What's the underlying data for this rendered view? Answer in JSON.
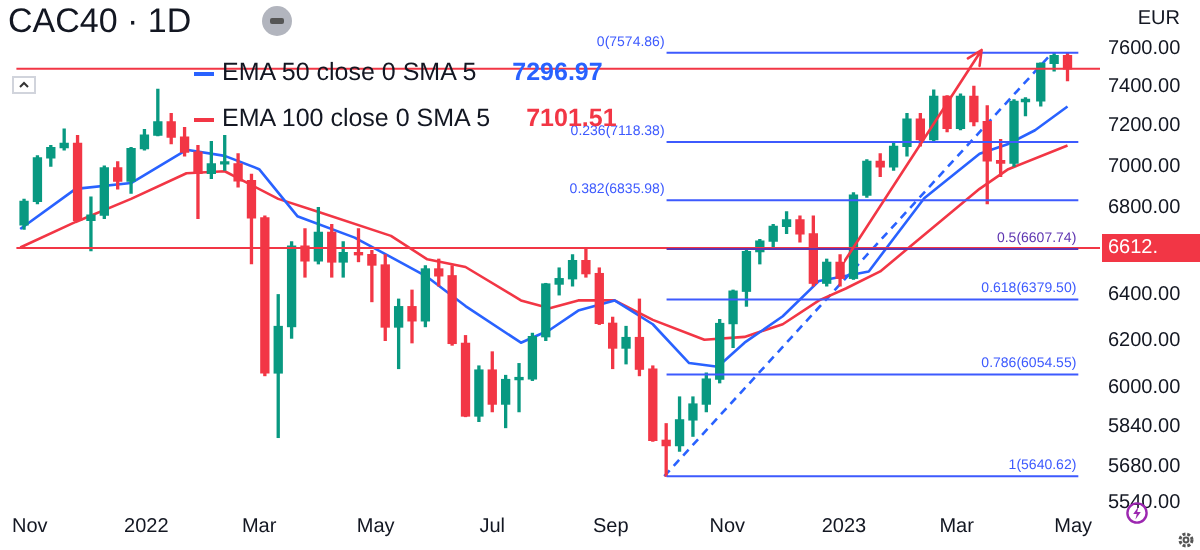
{
  "chart_data": {
    "type": "candlestick",
    "title": "CAC40 · 1D",
    "ylabel": "EUR",
    "log": "y",
    "grid": false,
    "legend": "top left",
    "xlim": [
      "2021-10-25",
      "2023-05-15"
    ],
    "xticks": [
      {
        "value": "2021-11-01",
        "label": "Nov"
      },
      {
        "value": "2022-01-01",
        "label": "2022"
      },
      {
        "value": "2022-03-01",
        "label": "Mar"
      },
      {
        "value": "2022-05-01",
        "label": "May"
      },
      {
        "value": "2022-07-01",
        "label": "Jul"
      },
      {
        "value": "2022-09-01",
        "label": "Sep"
      },
      {
        "value": "2022-11-01",
        "label": "Nov"
      },
      {
        "value": "2023-01-01",
        "label": "2023"
      },
      {
        "value": "2023-03-01",
        "label": "Mar"
      },
      {
        "value": "2023-05-01",
        "label": "May"
      }
    ],
    "ylim": [
      5540,
      7600
    ],
    "annotations": [
      "7296.97",
      "7101.51"
    ],
    "yticks": [
      {
        "value": 7600,
        "label": "7600.00"
      },
      {
        "value": 7400,
        "label": "7400.00"
      },
      {
        "value": 7200,
        "label": "7200.00"
      },
      {
        "value": 7000,
        "label": "7000.00"
      },
      {
        "value": 6800,
        "label": "6800.00"
      },
      {
        "value": 6400,
        "label": "6400.00"
      },
      {
        "value": 6200,
        "label": "6200.00"
      },
      {
        "value": 6000,
        "label": "6000.00"
      },
      {
        "value": 5840,
        "label": "5840.00"
      },
      {
        "value": 5680,
        "label": "5680.00"
      },
      {
        "value": 5540,
        "label": "5540.00"
      }
    ],
    "x": [
      "2021-10-29",
      "2021-11-05",
      "2021-11-12",
      "2021-11-19",
      "2021-11-26",
      "2021-12-03",
      "2021-12-10",
      "2021-12-17",
      "2021-12-24",
      "2021-12-31",
      "2022-01-07",
      "2022-01-14",
      "2022-01-21",
      "2022-01-28",
      "2022-02-04",
      "2022-02-11",
      "2022-02-18",
      "2022-02-25",
      "2022-03-04",
      "2022-03-11",
      "2022-03-18",
      "2022-03-25",
      "2022-04-01",
      "2022-04-08",
      "2022-04-14",
      "2022-04-22",
      "2022-04-29",
      "2022-05-06",
      "2022-05-13",
      "2022-05-20",
      "2022-05-27",
      "2022-06-03",
      "2022-06-10",
      "2022-06-17",
      "2022-06-24",
      "2022-07-01",
      "2022-07-08",
      "2022-07-15",
      "2022-07-22",
      "2022-07-29",
      "2022-08-05",
      "2022-08-12",
      "2022-08-19",
      "2022-08-26",
      "2022-09-02",
      "2022-09-09",
      "2022-09-16",
      "2022-09-23",
      "2022-09-30",
      "2022-10-07",
      "2022-10-14",
      "2022-10-21",
      "2022-10-28",
      "2022-11-04",
      "2022-11-11",
      "2022-11-18",
      "2022-11-25",
      "2022-12-02",
      "2022-12-09",
      "2022-12-16",
      "2022-12-23",
      "2022-12-30",
      "2023-01-06",
      "2023-01-13",
      "2023-01-20",
      "2023-01-27",
      "2023-02-03",
      "2023-02-10",
      "2023-02-17",
      "2023-02-24",
      "2023-03-03",
      "2023-03-10",
      "2023-03-17",
      "2023-03-24",
      "2023-03-31",
      "2023-04-06",
      "2023-04-14",
      "2023-04-21",
      "2023-04-28"
    ],
    "ohlc": [
      [
        6720,
        6840,
        6700,
        6830
      ],
      [
        6830,
        7050,
        6820,
        7040
      ],
      [
        7040,
        7100,
        7000,
        7091
      ],
      [
        7091,
        7183,
        7080,
        7112
      ],
      [
        7112,
        7150,
        6740,
        6740
      ],
      [
        6740,
        6850,
        6600,
        6765
      ],
      [
        6765,
        7000,
        6750,
        6991
      ],
      [
        6991,
        7020,
        6890,
        6927
      ],
      [
        6927,
        7090,
        6870,
        7086
      ],
      [
        7086,
        7180,
        7080,
        7153
      ],
      [
        7153,
        7384,
        7150,
        7219
      ],
      [
        7219,
        7260,
        7110,
        7143
      ],
      [
        7143,
        7190,
        7050,
        7068
      ],
      [
        7068,
        7100,
        6750,
        6965
      ],
      [
        6965,
        7120,
        6940,
        7011
      ],
      [
        7011,
        7150,
        6980,
        7011
      ],
      [
        7011,
        7060,
        6900,
        6929
      ],
      [
        6929,
        6960,
        6540,
        6752
      ],
      [
        6752,
        6760,
        6050,
        6061
      ],
      [
        6061,
        6400,
        5795,
        6260
      ],
      [
        6260,
        6640,
        6210,
        6620
      ],
      [
        6620,
        6700,
        6480,
        6553
      ],
      [
        6553,
        6800,
        6540,
        6684
      ],
      [
        6684,
        6720,
        6480,
        6548
      ],
      [
        6548,
        6640,
        6480,
        6590
      ],
      [
        6590,
        6700,
        6550,
        6581
      ],
      [
        6581,
        6600,
        6370,
        6534
      ],
      [
        6534,
        6580,
        6200,
        6258
      ],
      [
        6258,
        6380,
        6080,
        6347
      ],
      [
        6347,
        6420,
        6190,
        6285
      ],
      [
        6285,
        6530,
        6260,
        6516
      ],
      [
        6516,
        6560,
        6440,
        6485
      ],
      [
        6485,
        6530,
        6180,
        6187
      ],
      [
        6187,
        6220,
        5880,
        5882
      ],
      [
        5882,
        6090,
        5860,
        6073
      ],
      [
        6073,
        6150,
        5900,
        5931
      ],
      [
        5931,
        6050,
        5835,
        6033
      ],
      [
        6033,
        6100,
        5900,
        6036
      ],
      [
        6036,
        6230,
        6030,
        6216
      ],
      [
        6216,
        6450,
        6200,
        6448
      ],
      [
        6448,
        6520,
        6400,
        6472
      ],
      [
        6472,
        6580,
        6440,
        6554
      ],
      [
        6554,
        6610,
        6480,
        6495
      ],
      [
        6495,
        6520,
        6270,
        6274
      ],
      [
        6274,
        6300,
        6080,
        6167
      ],
      [
        6167,
        6260,
        6100,
        6212
      ],
      [
        6212,
        6380,
        6050,
        6077
      ],
      [
        6077,
        6090,
        5780,
        5783
      ],
      [
        5783,
        5850,
        5640.62,
        5762
      ],
      [
        5762,
        5960,
        5740,
        5866
      ],
      [
        5866,
        5960,
        5800,
        5931
      ],
      [
        5931,
        6060,
        5900,
        6035
      ],
      [
        6035,
        6290,
        6020,
        6273
      ],
      [
        6273,
        6420,
        6170,
        6416
      ],
      [
        6416,
        6610,
        6350,
        6595
      ],
      [
        6595,
        6650,
        6540,
        6644
      ],
      [
        6644,
        6720,
        6620,
        6712
      ],
      [
        6712,
        6780,
        6680,
        6742
      ],
      [
        6742,
        6760,
        6640,
        6677
      ],
      [
        6677,
        6760,
        6440,
        6452
      ],
      [
        6452,
        6560,
        6440,
        6546
      ],
      [
        6546,
        6580,
        6440,
        6474
      ],
      [
        6474,
        6870,
        6470,
        6860
      ],
      [
        6860,
        7030,
        6850,
        7023
      ],
      [
        7023,
        7060,
        6950,
        6996
      ],
      [
        6996,
        7110,
        6980,
        7097
      ],
      [
        7097,
        7260,
        7050,
        7233
      ],
      [
        7233,
        7260,
        7100,
        7130
      ],
      [
        7130,
        7380,
        7120,
        7348
      ],
      [
        7348,
        7350,
        7170,
        7187
      ],
      [
        7187,
        7360,
        7180,
        7348
      ],
      [
        7348,
        7400,
        7200,
        7220
      ],
      [
        7220,
        7300,
        6820,
        7026
      ],
      [
        7026,
        7130,
        6950,
        7015
      ],
      [
        7015,
        7330,
        7000,
        7322
      ],
      [
        7322,
        7340,
        7250,
        7325
      ],
      [
        7325,
        7520,
        7300,
        7519
      ],
      [
        7519,
        7574.86,
        7480,
        7560
      ],
      [
        7560,
        7570,
        7430,
        7491
      ]
    ],
    "series": [
      {
        "name": "EMA 50 close 0 SMA 5",
        "type": "line",
        "color": "#2962ff",
        "x": [
          "2021-10-27",
          "2021-11-25",
          "2021-12-24",
          "2022-01-22",
          "2022-02-11",
          "2022-03-01",
          "2022-03-21",
          "2022-04-20",
          "2022-05-09",
          "2022-05-28",
          "2022-06-17",
          "2022-07-16",
          "2022-07-31",
          "2022-08-15",
          "2022-09-03",
          "2022-09-23",
          "2022-10-12",
          "2022-10-27",
          "2022-11-10",
          "2022-11-30",
          "2022-12-19",
          "2023-01-14",
          "2023-02-12",
          "2023-03-13",
          "2023-03-28",
          "2023-04-11",
          "2023-04-28"
        ],
        "values": [
          6700,
          6890,
          6918,
          7080,
          7050,
          6985,
          6760,
          6660,
          6570,
          6480,
          6350,
          6190,
          6245,
          6330,
          6375,
          6270,
          6103,
          6087,
          6190,
          6305,
          6462,
          6505,
          6845,
          7060,
          7109,
          7177,
          7296.97
        ]
      },
      {
        "name": "EMA 100 close 0 SMA 5",
        "type": "line",
        "color": "#f23645",
        "x": [
          "2021-10-27",
          "2021-11-25",
          "2021-12-24",
          "2022-01-22",
          "2022-02-11",
          "2022-03-11",
          "2022-03-31",
          "2022-05-09",
          "2022-05-28",
          "2022-06-17",
          "2022-07-16",
          "2022-07-31",
          "2022-08-15",
          "2022-09-03",
          "2022-09-23",
          "2022-10-20",
          "2022-11-10",
          "2022-11-30",
          "2022-12-19",
          "2023-01-02",
          "2023-01-20",
          "2023-03-13",
          "2023-03-28",
          "2023-04-28"
        ],
        "values": [
          6614,
          6733,
          6842,
          6965,
          6975,
          6842,
          6783,
          6668,
          6560,
          6525,
          6375,
          6340,
          6375,
          6375,
          6289,
          6203,
          6215,
          6270,
          6375,
          6428,
          6505,
          6890,
          6985,
          7101.51
        ]
      },
      {
        "type": "line",
        "color": "#2962ff",
        "line_style": "dashed",
        "x": [
          "2022-09-29",
          "2023-04-20"
        ],
        "values": [
          5640.62,
          7574.86
        ]
      }
    ],
    "ref_lines": [
      {
        "axis": "y",
        "value": 7491,
        "color": "#f23645"
      },
      {
        "axis": "y",
        "value": 6612,
        "label": "6612.",
        "color": "#f23645"
      },
      {
        "axis": "y",
        "value": 7574.86,
        "label": "0(7574.86)",
        "color": "#3d5afe"
      },
      {
        "axis": "y",
        "value": 7118.38,
        "label": "0.236(7118.38)",
        "color": "#3d5afe"
      },
      {
        "axis": "y",
        "value": 6835.98,
        "label": "0.382(6835.98)",
        "color": "#3d5afe"
      },
      {
        "axis": "y",
        "value": 6607.74,
        "label": "0.5(6607.74)",
        "color": "#5e35b1"
      },
      {
        "axis": "y",
        "value": 6379.5,
        "label": "0.618(6379.50)",
        "color": "#3d5afe"
      },
      {
        "axis": "y",
        "value": 6054.55,
        "label": "0.786(6054.55)",
        "color": "#3d5afe"
      },
      {
        "axis": "y",
        "value": 5640.62,
        "label": "1(5640.62)",
        "color": "#3d5afe"
      }
    ]
  }
}
